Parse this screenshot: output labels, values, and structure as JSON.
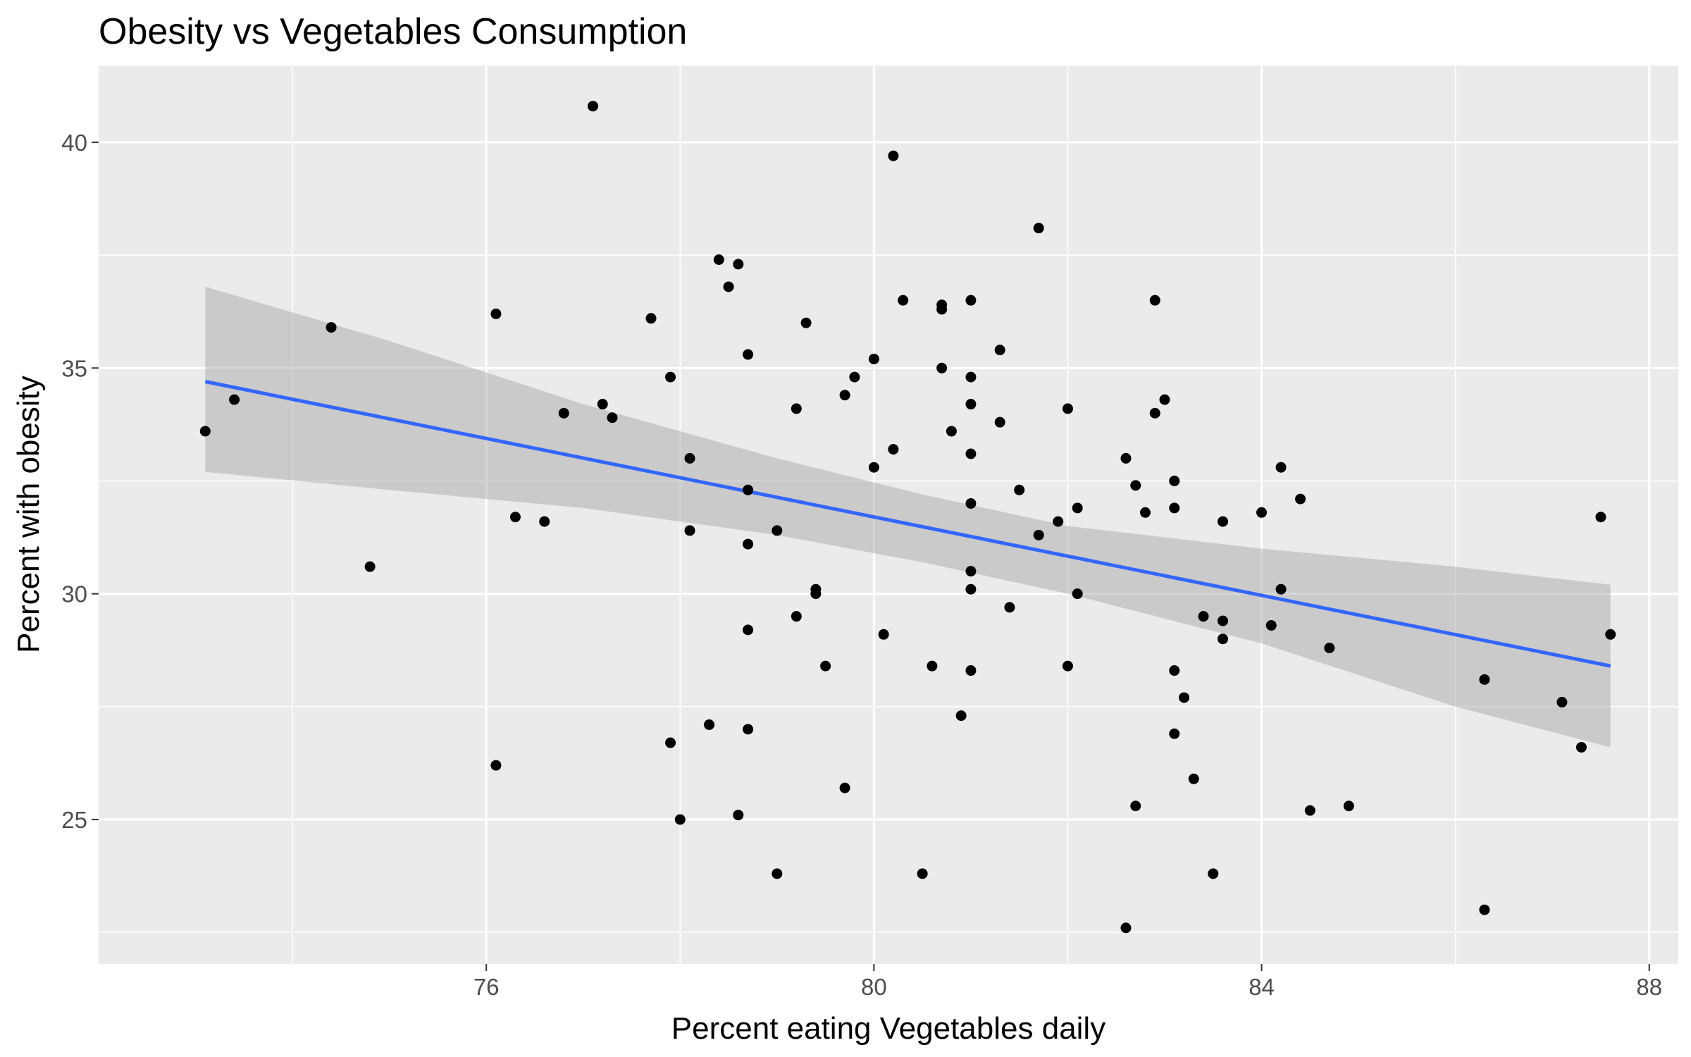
{
  "chart_data": {
    "type": "scatter",
    "title": "Obesity vs Vegetables Consumption",
    "xlabel": "Percent eating Vegetables daily",
    "ylabel": "Percent with obesity",
    "xlim": [
      72.0,
      88.3
    ],
    "ylim": [
      21.8,
      41.7
    ],
    "x_major_ticks": [
      76,
      80,
      84,
      88
    ],
    "x_minor_ticks": [
      74,
      78,
      82,
      86
    ],
    "y_major_ticks": [
      25,
      30,
      35,
      40
    ],
    "y_minor_ticks": [
      22.5,
      27.5,
      32.5,
      37.5
    ],
    "grid": true,
    "colors": {
      "panel": "#ebebeb",
      "grid": "#ffffff",
      "points": "#000000",
      "fit_line": "#3366ff",
      "confidence_band": "#999999"
    },
    "fit_line": {
      "x": [
        73.1,
        87.6
      ],
      "y": [
        34.7,
        28.4
      ]
    },
    "confidence_band": {
      "x": [
        73.1,
        75.0,
        77.0,
        79.0,
        80.5,
        82.0,
        84.0,
        86.0,
        87.6
      ],
      "upper": [
        36.8,
        35.6,
        34.2,
        33.0,
        32.2,
        31.5,
        31.0,
        30.6,
        30.2
      ],
      "lower": [
        32.7,
        32.3,
        31.9,
        31.3,
        30.7,
        30.0,
        28.9,
        27.5,
        26.6
      ]
    },
    "points": [
      {
        "x": 73.1,
        "y": 33.6
      },
      {
        "x": 73.4,
        "y": 34.3
      },
      {
        "x": 74.4,
        "y": 35.9
      },
      {
        "x": 74.8,
        "y": 30.6
      },
      {
        "x": 76.1,
        "y": 36.2
      },
      {
        "x": 76.1,
        "y": 26.2
      },
      {
        "x": 76.3,
        "y": 31.7
      },
      {
        "x": 76.6,
        "y": 31.6
      },
      {
        "x": 76.8,
        "y": 34.0
      },
      {
        "x": 77.1,
        "y": 40.8
      },
      {
        "x": 77.2,
        "y": 34.2
      },
      {
        "x": 77.3,
        "y": 33.9
      },
      {
        "x": 77.7,
        "y": 36.1
      },
      {
        "x": 77.9,
        "y": 34.8
      },
      {
        "x": 77.9,
        "y": 26.7
      },
      {
        "x": 78.0,
        "y": 25.0
      },
      {
        "x": 78.1,
        "y": 33.0
      },
      {
        "x": 78.1,
        "y": 31.4
      },
      {
        "x": 78.3,
        "y": 27.1
      },
      {
        "x": 78.4,
        "y": 37.4
      },
      {
        "x": 78.5,
        "y": 36.8
      },
      {
        "x": 78.6,
        "y": 37.3
      },
      {
        "x": 78.6,
        "y": 25.1
      },
      {
        "x": 78.7,
        "y": 35.3
      },
      {
        "x": 78.7,
        "y": 32.3
      },
      {
        "x": 78.7,
        "y": 31.1
      },
      {
        "x": 78.7,
        "y": 29.2
      },
      {
        "x": 78.7,
        "y": 27.0
      },
      {
        "x": 79.0,
        "y": 31.4
      },
      {
        "x": 79.0,
        "y": 23.8
      },
      {
        "x": 79.2,
        "y": 34.1
      },
      {
        "x": 79.2,
        "y": 29.5
      },
      {
        "x": 79.3,
        "y": 36.0
      },
      {
        "x": 79.4,
        "y": 30.1
      },
      {
        "x": 79.4,
        "y": 30.0
      },
      {
        "x": 79.5,
        "y": 28.4
      },
      {
        "x": 79.7,
        "y": 34.4
      },
      {
        "x": 79.7,
        "y": 25.7
      },
      {
        "x": 79.8,
        "y": 34.8
      },
      {
        "x": 80.0,
        "y": 35.2
      },
      {
        "x": 80.0,
        "y": 32.8
      },
      {
        "x": 80.1,
        "y": 29.1
      },
      {
        "x": 80.2,
        "y": 39.7
      },
      {
        "x": 80.2,
        "y": 33.2
      },
      {
        "x": 80.3,
        "y": 36.5
      },
      {
        "x": 80.5,
        "y": 23.8
      },
      {
        "x": 80.6,
        "y": 28.4
      },
      {
        "x": 80.7,
        "y": 36.4
      },
      {
        "x": 80.7,
        "y": 36.3
      },
      {
        "x": 80.7,
        "y": 35.0
      },
      {
        "x": 80.8,
        "y": 33.6
      },
      {
        "x": 80.9,
        "y": 27.3
      },
      {
        "x": 81.0,
        "y": 36.5
      },
      {
        "x": 81.0,
        "y": 34.8
      },
      {
        "x": 81.0,
        "y": 34.2
      },
      {
        "x": 81.0,
        "y": 33.1
      },
      {
        "x": 81.0,
        "y": 32.0
      },
      {
        "x": 81.0,
        "y": 30.5
      },
      {
        "x": 81.0,
        "y": 30.1
      },
      {
        "x": 81.0,
        "y": 28.3
      },
      {
        "x": 81.3,
        "y": 35.4
      },
      {
        "x": 81.3,
        "y": 33.8
      },
      {
        "x": 81.4,
        "y": 29.7
      },
      {
        "x": 81.5,
        "y": 32.3
      },
      {
        "x": 81.7,
        "y": 38.1
      },
      {
        "x": 81.7,
        "y": 31.3
      },
      {
        "x": 81.9,
        "y": 31.6
      },
      {
        "x": 82.0,
        "y": 34.1
      },
      {
        "x": 82.0,
        "y": 28.4
      },
      {
        "x": 82.1,
        "y": 31.9
      },
      {
        "x": 82.1,
        "y": 30.0
      },
      {
        "x": 82.6,
        "y": 33.0
      },
      {
        "x": 82.6,
        "y": 22.6
      },
      {
        "x": 82.7,
        "y": 32.4
      },
      {
        "x": 82.7,
        "y": 25.3
      },
      {
        "x": 82.8,
        "y": 31.8
      },
      {
        "x": 82.9,
        "y": 36.5
      },
      {
        "x": 82.9,
        "y": 34.0
      },
      {
        "x": 83.0,
        "y": 34.3
      },
      {
        "x": 83.1,
        "y": 32.5
      },
      {
        "x": 83.1,
        "y": 31.9
      },
      {
        "x": 83.1,
        "y": 28.3
      },
      {
        "x": 83.1,
        "y": 26.9
      },
      {
        "x": 83.2,
        "y": 27.7
      },
      {
        "x": 83.3,
        "y": 25.9
      },
      {
        "x": 83.4,
        "y": 29.5
      },
      {
        "x": 83.5,
        "y": 23.8
      },
      {
        "x": 83.6,
        "y": 31.6
      },
      {
        "x": 83.6,
        "y": 29.4
      },
      {
        "x": 83.6,
        "y": 29.0
      },
      {
        "x": 84.0,
        "y": 31.8
      },
      {
        "x": 84.1,
        "y": 29.3
      },
      {
        "x": 84.2,
        "y": 32.8
      },
      {
        "x": 84.2,
        "y": 30.1
      },
      {
        "x": 84.4,
        "y": 32.1
      },
      {
        "x": 84.5,
        "y": 25.2
      },
      {
        "x": 84.7,
        "y": 28.8
      },
      {
        "x": 84.9,
        "y": 25.3
      },
      {
        "x": 86.3,
        "y": 28.1
      },
      {
        "x": 86.3,
        "y": 23.0
      },
      {
        "x": 87.1,
        "y": 27.6
      },
      {
        "x": 87.3,
        "y": 26.6
      },
      {
        "x": 87.5,
        "y": 31.7
      },
      {
        "x": 87.6,
        "y": 29.1
      }
    ]
  }
}
